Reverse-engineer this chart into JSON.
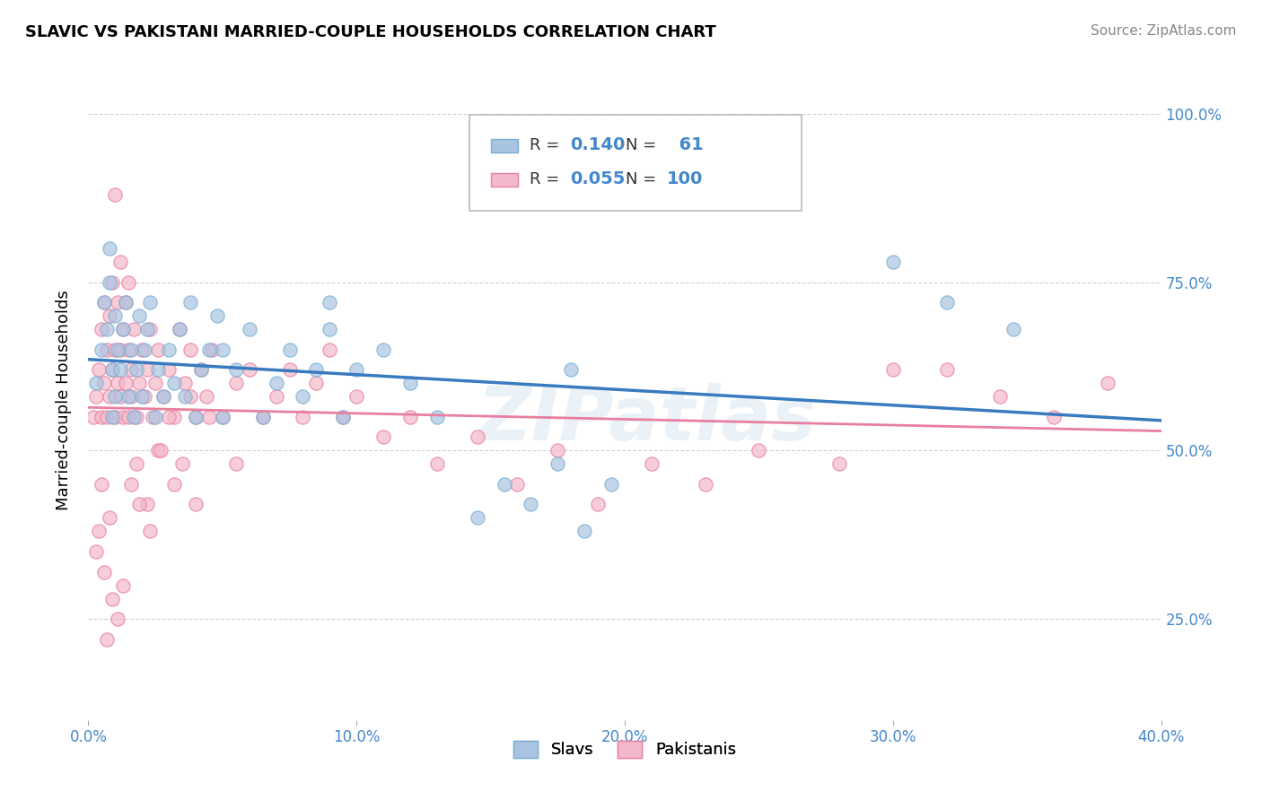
{
  "title": "SLAVIC VS PAKISTANI MARRIED-COUPLE HOUSEHOLDS CORRELATION CHART",
  "source": "Source: ZipAtlas.com",
  "ylabel": "Married-couple Households",
  "xlim": [
    0.0,
    0.4
  ],
  "ylim": [
    0.1,
    1.05
  ],
  "xtick_vals": [
    0.0,
    0.1,
    0.2,
    0.3,
    0.4
  ],
  "xtick_labels": [
    "0.0%",
    "10.0%",
    "20.0%",
    "30.0%",
    "40.0%"
  ],
  "ytick_vals": [
    0.25,
    0.5,
    0.75,
    1.0
  ],
  "ytick_labels": [
    "25.0%",
    "50.0%",
    "75.0%",
    "100.0%"
  ],
  "slavs_R": 0.14,
  "slavs_N": 61,
  "pakistanis_R": 0.055,
  "pakistanis_N": 100,
  "slavs_color": "#a8c4e0",
  "slavs_edge_color": "#7aafd4",
  "pakistanis_color": "#f4b8cb",
  "pakistanis_edge_color": "#e87fa0",
  "slavs_line_color": "#3a7abf",
  "pakistanis_line_color": "#e87fa0",
  "watermark": "ZIPatlas",
  "legend_label_slavs": "Slavs",
  "legend_label_pakistanis": "Pakistanis",
  "slavs_x": [
    0.003,
    0.005,
    0.006,
    0.007,
    0.008,
    0.008,
    0.009,
    0.009,
    0.01,
    0.01,
    0.011,
    0.012,
    0.013,
    0.014,
    0.015,
    0.016,
    0.017,
    0.018,
    0.019,
    0.02,
    0.021,
    0.022,
    0.023,
    0.025,
    0.026,
    0.028,
    0.03,
    0.032,
    0.034,
    0.036,
    0.038,
    0.04,
    0.042,
    0.045,
    0.048,
    0.05,
    0.055,
    0.06,
    0.065,
    0.07,
    0.075,
    0.08,
    0.085,
    0.09,
    0.095,
    0.1,
    0.11,
    0.12,
    0.13,
    0.145,
    0.155,
    0.165,
    0.175,
    0.185,
    0.195,
    0.3,
    0.32,
    0.345,
    0.18,
    0.09,
    0.05
  ],
  "slavs_y": [
    0.6,
    0.65,
    0.72,
    0.68,
    0.75,
    0.8,
    0.55,
    0.62,
    0.58,
    0.7,
    0.65,
    0.62,
    0.68,
    0.72,
    0.58,
    0.65,
    0.55,
    0.62,
    0.7,
    0.58,
    0.65,
    0.68,
    0.72,
    0.55,
    0.62,
    0.58,
    0.65,
    0.6,
    0.68,
    0.58,
    0.72,
    0.55,
    0.62,
    0.65,
    0.7,
    0.55,
    0.62,
    0.68,
    0.55,
    0.6,
    0.65,
    0.58,
    0.62,
    0.68,
    0.55,
    0.62,
    0.65,
    0.6,
    0.55,
    0.4,
    0.45,
    0.42,
    0.48,
    0.38,
    0.45,
    0.78,
    0.72,
    0.68,
    0.62,
    0.72,
    0.65
  ],
  "pakistanis_x": [
    0.002,
    0.003,
    0.004,
    0.005,
    0.005,
    0.006,
    0.006,
    0.007,
    0.007,
    0.008,
    0.008,
    0.009,
    0.009,
    0.01,
    0.01,
    0.011,
    0.011,
    0.012,
    0.012,
    0.013,
    0.013,
    0.014,
    0.014,
    0.015,
    0.015,
    0.016,
    0.016,
    0.017,
    0.018,
    0.019,
    0.02,
    0.021,
    0.022,
    0.023,
    0.024,
    0.025,
    0.026,
    0.028,
    0.03,
    0.032,
    0.034,
    0.036,
    0.038,
    0.04,
    0.042,
    0.044,
    0.046,
    0.05,
    0.055,
    0.06,
    0.065,
    0.07,
    0.075,
    0.08,
    0.085,
    0.09,
    0.095,
    0.1,
    0.11,
    0.12,
    0.13,
    0.145,
    0.16,
    0.175,
    0.19,
    0.21,
    0.23,
    0.25,
    0.28,
    0.3,
    0.32,
    0.34,
    0.36,
    0.38,
    0.005,
    0.008,
    0.01,
    0.012,
    0.015,
    0.018,
    0.022,
    0.026,
    0.03,
    0.035,
    0.04,
    0.045,
    0.003,
    0.004,
    0.006,
    0.007,
    0.009,
    0.011,
    0.013,
    0.016,
    0.019,
    0.023,
    0.027,
    0.032,
    0.038,
    0.055
  ],
  "pakistanis_y": [
    0.55,
    0.58,
    0.62,
    0.55,
    0.68,
    0.6,
    0.72,
    0.55,
    0.65,
    0.58,
    0.7,
    0.62,
    0.75,
    0.55,
    0.65,
    0.6,
    0.72,
    0.58,
    0.65,
    0.55,
    0.68,
    0.6,
    0.72,
    0.55,
    0.65,
    0.58,
    0.62,
    0.68,
    0.55,
    0.6,
    0.65,
    0.58,
    0.62,
    0.68,
    0.55,
    0.6,
    0.65,
    0.58,
    0.62,
    0.55,
    0.68,
    0.6,
    0.65,
    0.55,
    0.62,
    0.58,
    0.65,
    0.55,
    0.6,
    0.62,
    0.55,
    0.58,
    0.62,
    0.55,
    0.6,
    0.65,
    0.55,
    0.58,
    0.52,
    0.55,
    0.48,
    0.52,
    0.45,
    0.5,
    0.42,
    0.48,
    0.45,
    0.5,
    0.48,
    0.62,
    0.62,
    0.58,
    0.55,
    0.6,
    0.45,
    0.4,
    0.88,
    0.78,
    0.75,
    0.48,
    0.42,
    0.5,
    0.55,
    0.48,
    0.42,
    0.55,
    0.35,
    0.38,
    0.32,
    0.22,
    0.28,
    0.25,
    0.3,
    0.45,
    0.42,
    0.38,
    0.5,
    0.45,
    0.58,
    0.48
  ]
}
